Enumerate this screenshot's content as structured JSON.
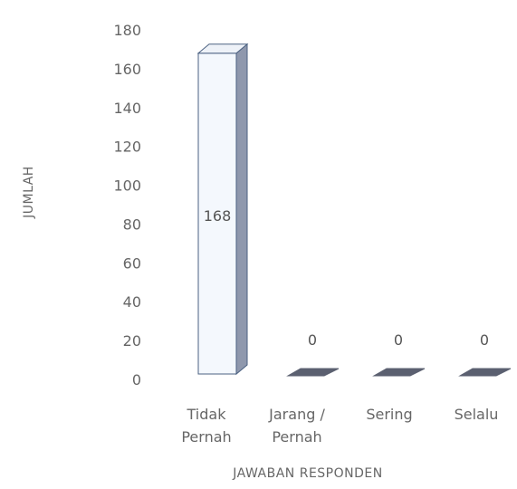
{
  "chart_data": {
    "type": "bar",
    "title": "",
    "categories": [
      [
        "Tidak",
        "Pernah"
      ],
      [
        "Jarang /",
        "Pernah"
      ],
      [
        "Sering"
      ],
      [
        "Selalu"
      ]
    ],
    "values": [
      168,
      0,
      0,
      0
    ],
    "data_labels": [
      "168",
      "0",
      "0",
      "0"
    ],
    "xlabel": "JAWABAN RESPONDEN",
    "ylabel": "JUMLAH",
    "yticks": [
      "0",
      "20",
      "40",
      "60",
      "80",
      "100",
      "120",
      "140",
      "160",
      "180"
    ],
    "ylim": [
      0,
      180
    ],
    "grid": false,
    "legend": "none",
    "three_d": true,
    "colors": {
      "bar_front": "#f4f8fd",
      "bar_side": "#8f98ad",
      "bar_top": "#eef2f8",
      "bar_outline": "#4c6282",
      "zero_bar": "#5b6070",
      "text": "#666666"
    }
  }
}
